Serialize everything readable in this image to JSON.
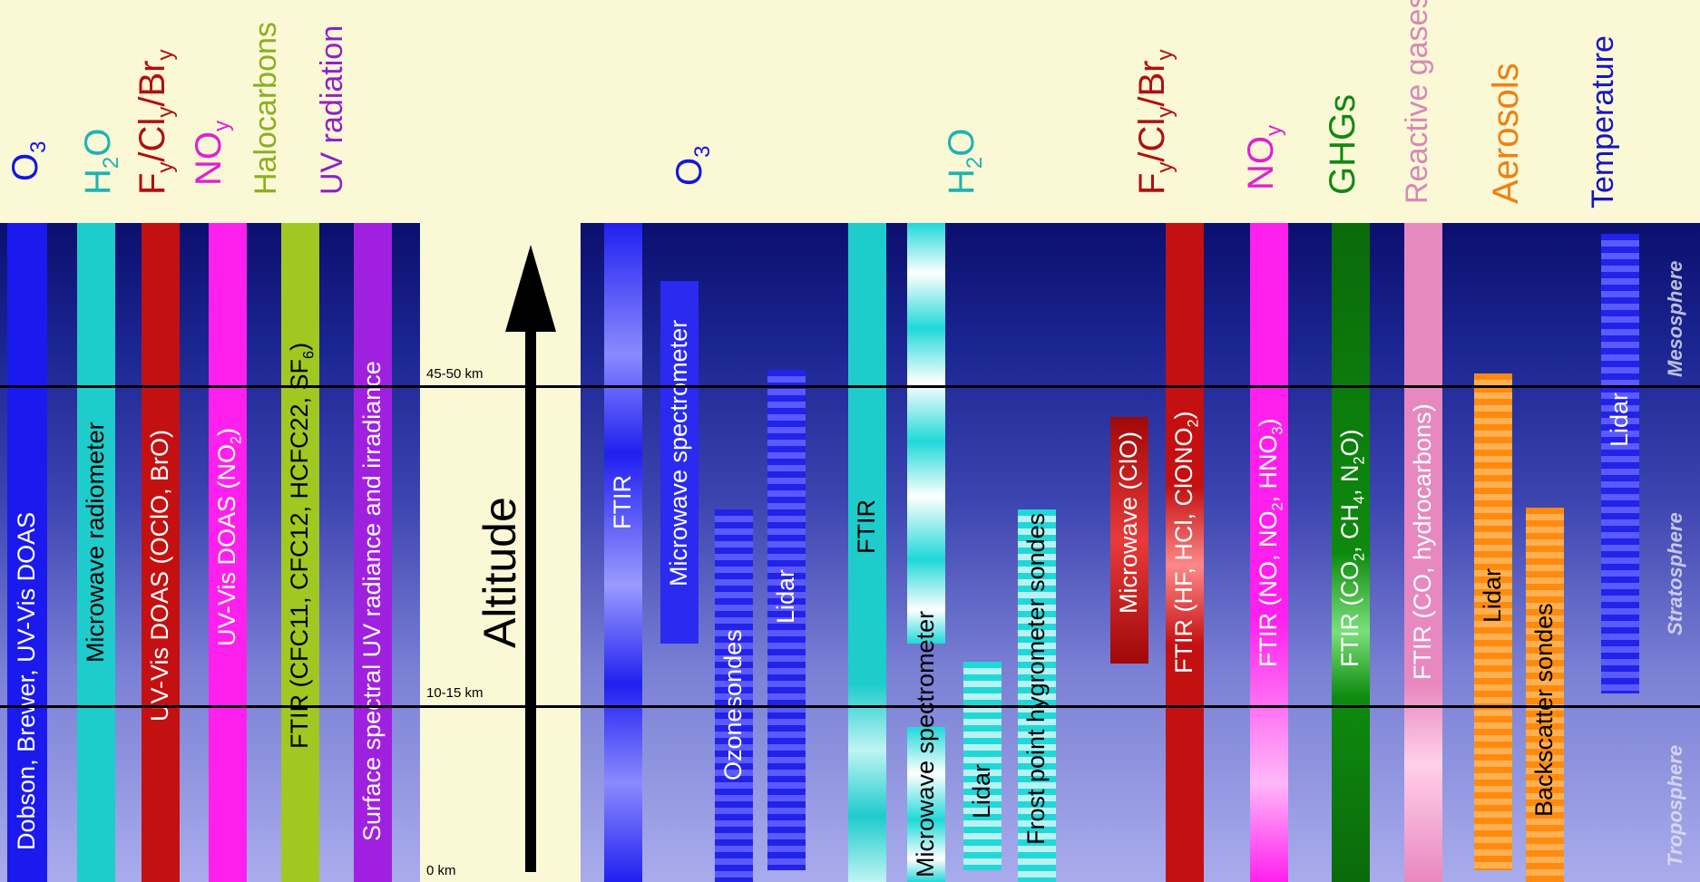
{
  "altitude": {
    "axis_label": "Altitude",
    "levels": [
      "45-50 km",
      "10-15 km",
      "0 km"
    ]
  },
  "regions": [
    "Mesosphere",
    "Stratosphere",
    "Troposphere"
  ],
  "left_headers": [
    {
      "text": "O3",
      "color": "#1515e0"
    },
    {
      "text": "H2O",
      "color": "#1eb3b3"
    },
    {
      "text": "Fy/Cly/Bry",
      "color": "#b01010"
    },
    {
      "text": "NOy",
      "color": "#e020d0"
    },
    {
      "text": "Halocarbons",
      "color": "#8ab020"
    },
    {
      "text": "UV radiation",
      "color": "#9020c8"
    }
  ],
  "left_bars": [
    {
      "label": "Dobson, Brewer, UV-Vis DOAS",
      "color": "#1a1aee"
    },
    {
      "label": "Microwave radiometer",
      "color": "#1ecccc"
    },
    {
      "label": "UV-Vis DOAS (OClO, BrO)",
      "color": "#c41010"
    },
    {
      "label": "UV-Vis DOAS (NO2)",
      "color": "#ff20ee"
    },
    {
      "label": "FTIR (CFC11, CFC12, HCFC22, SF6)",
      "color": "#a0c820"
    },
    {
      "label": "Surface spectral UV radiance and irradiance",
      "color": "#a020e0"
    }
  ],
  "right_headers": [
    {
      "text": "O3",
      "color": "#1515e0"
    },
    {
      "text": "H2O",
      "color": "#1eb3b3"
    },
    {
      "text": "Fy/Cly/Bry",
      "color": "#b01010"
    },
    {
      "text": "NOy",
      "color": "#e020d0"
    },
    {
      "text": "GHGs",
      "color": "#108a10"
    },
    {
      "text": "Reactive gases",
      "color": "#d888b8"
    },
    {
      "text": "Aerosols",
      "color": "#f08010"
    },
    {
      "text": "Temperature",
      "color": "#1515c0"
    }
  ],
  "right_bars": [
    {
      "label": "FTIR",
      "color": "#2020f0"
    },
    {
      "label": "Microwave spectrometer",
      "color": "#2a2af0"
    },
    {
      "label": "Ozonesondes",
      "color": "#2a2af0"
    },
    {
      "label": "Lidar",
      "color": "#2a2af0"
    },
    {
      "label": "FTIR",
      "color": "#1ecccc"
    },
    {
      "label": "Microwave spectrometer",
      "color": "#20d8d8"
    },
    {
      "label": "Lidar",
      "color": "#20d8d8"
    },
    {
      "label": "Frost point hygrometer sondes",
      "color": "#20d8d8"
    },
    {
      "label": "Microwave (ClO)",
      "color": "#d01818"
    },
    {
      "label": "FTIR (HF, HCl, ClONO2)",
      "color": "#c41010"
    },
    {
      "label": "FTIR (NO, NO2, HNO3)",
      "color": "#ff20ee"
    },
    {
      "label": "FTIR (CO2, CH4, N2O)",
      "color": "#0e8a0e"
    },
    {
      "label": "FTIR (CO, hydrocarbons)",
      "color": "#e888c0"
    },
    {
      "label": "Lidar",
      "color": "#ff8a10"
    },
    {
      "label": "Backscatter sondes",
      "color": "#ff8a10"
    },
    {
      "label": "Lidar",
      "color": "#2a2af0"
    }
  ]
}
